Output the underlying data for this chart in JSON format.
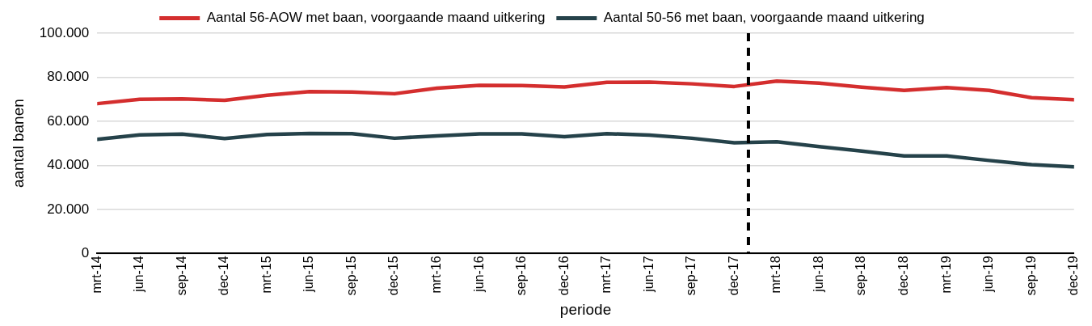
{
  "chart_data": {
    "type": "line",
    "xlabel": "periode",
    "ylabel": "aantal banen",
    "x": [
      "2014-03",
      "2014-06",
      "2014-09",
      "2014-12",
      "2015-03",
      "2015-06",
      "2015-09",
      "2015-12",
      "2016-03",
      "2016-06",
      "2016-09",
      "2016-12",
      "2017-03",
      "2017-06",
      "2017-09",
      "2017-12",
      "2018-03",
      "2018-06",
      "2018-09",
      "2018-12",
      "2019-03",
      "2019-06",
      "2019-09",
      "2019-12"
    ],
    "series": [
      {
        "name": "Aantal 56-AOW met baan, voorgaande maand uitkering",
        "color": "#d42e2e",
        "values": [
          68000,
          70000,
          70200,
          69500,
          71800,
          73500,
          73300,
          72500,
          75000,
          76300,
          76200,
          75600,
          77700,
          77800,
          77000,
          75800,
          78200,
          77300,
          75500,
          74000,
          75300,
          74000,
          70700,
          69800
        ]
      },
      {
        "name": "Aantal 50-56 met baan, voorgaande maand uitkering",
        "color": "#25424a",
        "values": [
          51800,
          53800,
          54200,
          52200,
          54000,
          54500,
          54400,
          52300,
          53400,
          54300,
          54300,
          53000,
          54400,
          53700,
          52300,
          50200,
          50700,
          48500,
          46500,
          44300,
          44300,
          42200,
          40300,
          39300
        ]
      }
    ],
    "xlim": [
      "2014-03",
      "2019-12"
    ],
    "xticks": [
      {
        "value": "2014-03",
        "label": "mrt-14"
      },
      {
        "value": "2014-06",
        "label": "jun-14"
      },
      {
        "value": "2014-09",
        "label": "sep-14"
      },
      {
        "value": "2014-12",
        "label": "dec-14"
      },
      {
        "value": "2015-03",
        "label": "mrt-15"
      },
      {
        "value": "2015-06",
        "label": "jun-15"
      },
      {
        "value": "2015-09",
        "label": "sep-15"
      },
      {
        "value": "2015-12",
        "label": "dec-15"
      },
      {
        "value": "2016-03",
        "label": "mrt-16"
      },
      {
        "value": "2016-06",
        "label": "jun-16"
      },
      {
        "value": "2016-09",
        "label": "sep-16"
      },
      {
        "value": "2016-12",
        "label": "dec-16"
      },
      {
        "value": "2017-03",
        "label": "mrt-17"
      },
      {
        "value": "2017-06",
        "label": "jun-17"
      },
      {
        "value": "2017-09",
        "label": "sep-17"
      },
      {
        "value": "2017-12",
        "label": "dec-17"
      },
      {
        "value": "2018-03",
        "label": "mrt-18"
      },
      {
        "value": "2018-06",
        "label": "jun-18"
      },
      {
        "value": "2018-09",
        "label": "sep-18"
      },
      {
        "value": "2018-12",
        "label": "dec-18"
      },
      {
        "value": "2019-03",
        "label": "mrt-19"
      },
      {
        "value": "2019-06",
        "label": "jun-19"
      },
      {
        "value": "2019-09",
        "label": "sep-19"
      },
      {
        "value": "2019-12",
        "label": "dec-19"
      }
    ],
    "ylim": [
      0,
      100000
    ],
    "yticks": [
      0,
      {
        "value": 20000,
        "label": "20.000"
      },
      {
        "value": 40000,
        "label": "40.000"
      },
      {
        "value": 60000,
        "label": "60.000"
      },
      {
        "value": 80000,
        "label": "80.000"
      },
      {
        "value": 100000,
        "label": "100.000"
      }
    ],
    "ref_lines": [
      {
        "axis": "x",
        "value": "2018-01",
        "color": "#000000",
        "line_style": "dashed"
      }
    ],
    "grid": "y",
    "legend": "top",
    "marker": "none",
    "line_style": "solid"
  }
}
